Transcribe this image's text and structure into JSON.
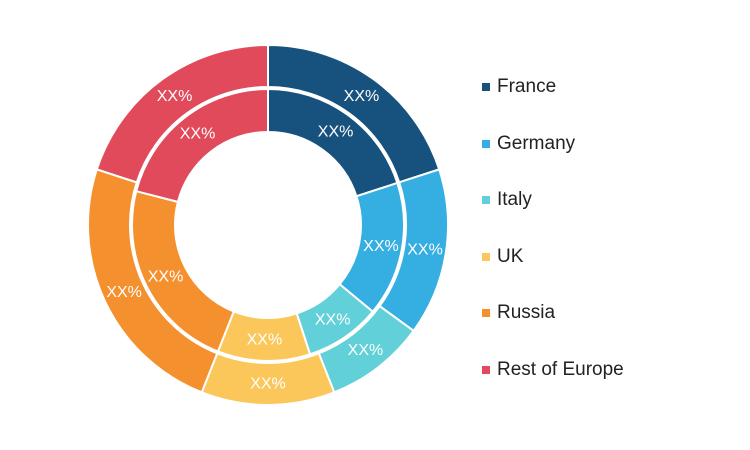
{
  "chart_data": {
    "type": "donut",
    "rings": 2,
    "categories": [
      "France",
      "Germany",
      "Italy",
      "UK",
      "Russia",
      "Rest of Europe"
    ],
    "colors": [
      "#17527f",
      "#35aee2",
      "#62d0d8",
      "#fbc75b",
      "#f5902f",
      "#e04a5a"
    ],
    "series": [
      {
        "ring": "outer",
        "values": [
          20,
          15,
          9,
          12,
          24,
          20
        ],
        "labels": [
          "XX%",
          "XX%",
          "XX%",
          "XX%",
          "XX%",
          "XX%"
        ]
      },
      {
        "ring": "inner",
        "values": [
          20,
          16,
          9,
          11,
          23,
          21
        ],
        "labels": [
          "XX%",
          "XX%",
          "XX%",
          "XX%",
          "XX%",
          "XX%"
        ]
      }
    ],
    "legend_position": "right"
  }
}
